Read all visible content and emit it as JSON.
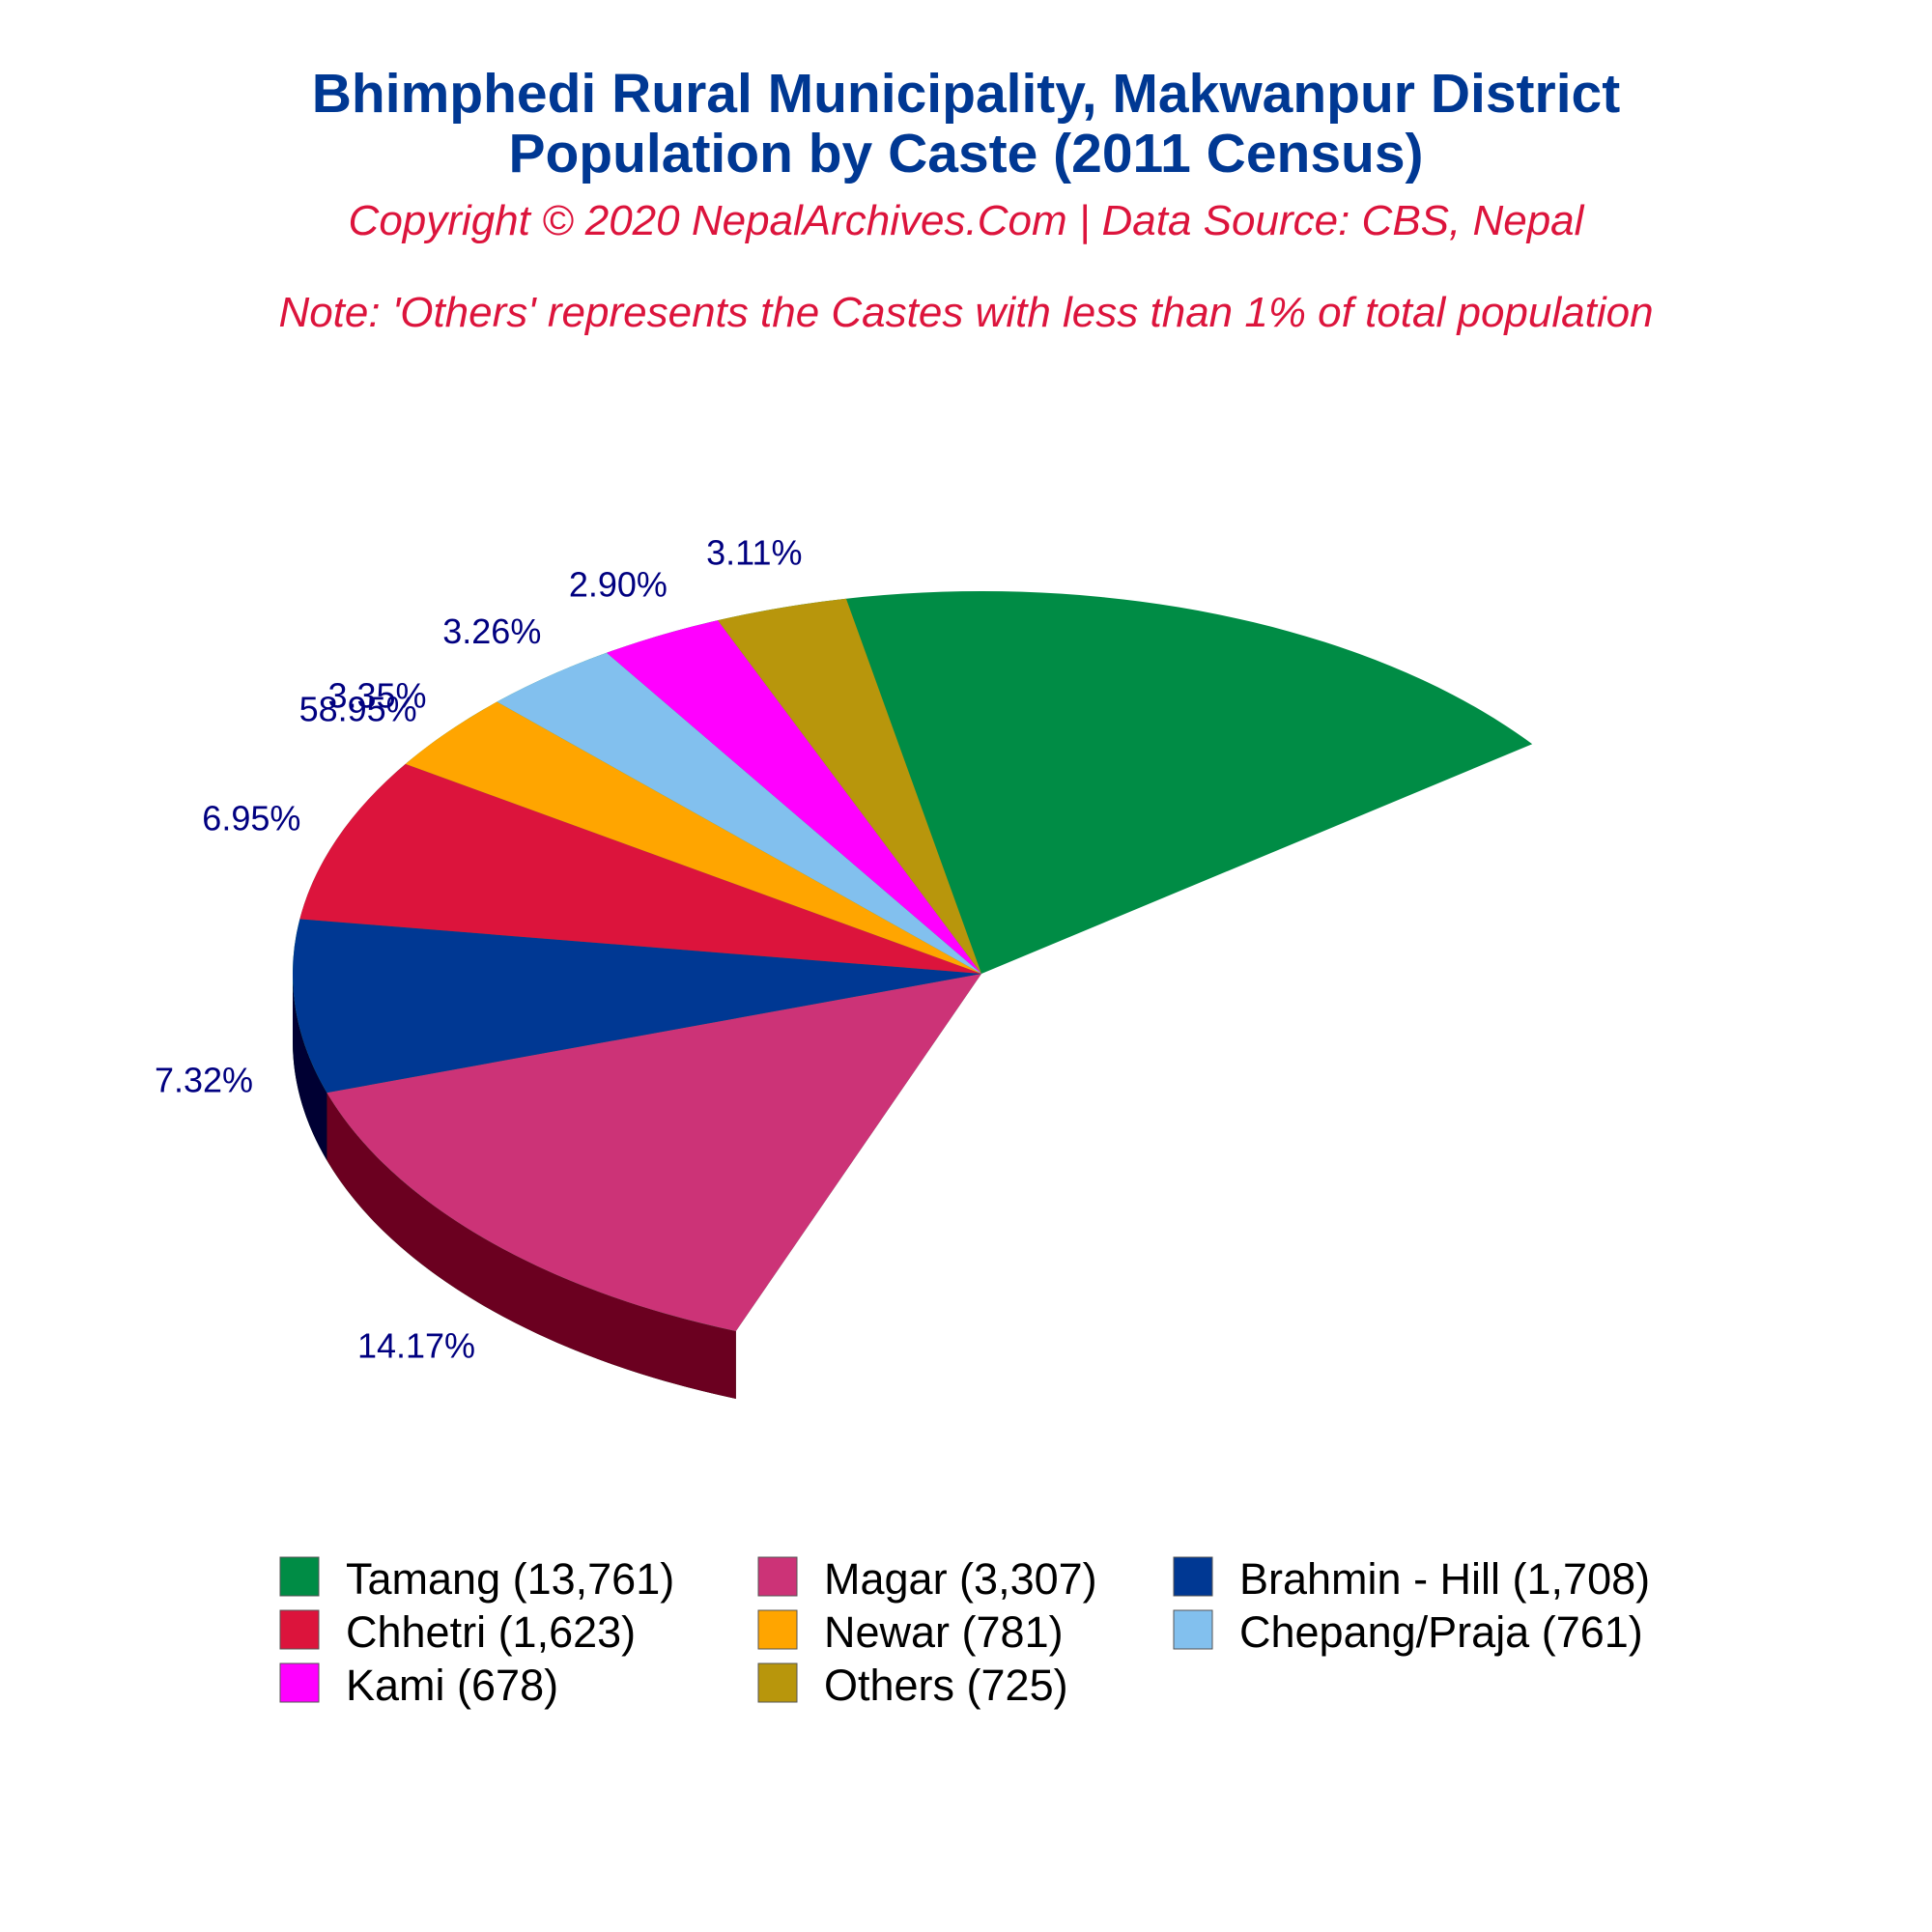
{
  "title_line1": "Bhimphedi Rural Municipality, Makwanpur District",
  "title_line2": "Population by Caste (2011 Census)",
  "copyright": "Copyright © 2020 NepalArchives.Com | Data Source: CBS, Nepal",
  "note": "Note: 'Others' represents the Castes with less than 1% of total population",
  "chart_data": {
    "type": "pie",
    "style": "3d",
    "legend_position": "bottom",
    "series": [
      {
        "label": "Tamang (13,761)",
        "value": 13761,
        "percent": "58.95%",
        "color": "#008C45",
        "side_color": "#003300"
      },
      {
        "label": "Magar (3,307)",
        "value": 3307,
        "percent": "14.17%",
        "color": "#CC3377",
        "side_color": "#6B0020"
      },
      {
        "label": "Brahmin - Hill (1,708)",
        "value": 1708,
        "percent": "7.32%",
        "color": "#003893",
        "side_color": "#000033"
      },
      {
        "label": "Chhetri (1,623)",
        "value": 1623,
        "percent": "6.95%",
        "color": "#DC143C",
        "side_color": "#800000"
      },
      {
        "label": "Newar (781)",
        "value": 781,
        "percent": "3.35%",
        "color": "#FFA500",
        "side_color": "#805200"
      },
      {
        "label": "Chepang/Praja (761)",
        "value": 761,
        "percent": "3.26%",
        "color": "#82C0EE",
        "side_color": "#406077"
      },
      {
        "label": "Kami (678)",
        "value": 678,
        "percent": "2.90%",
        "color": "#FF00FF",
        "side_color": "#800080"
      },
      {
        "label": "Others (725)",
        "value": 725,
        "percent": "3.11%",
        "color": "#B8960C",
        "side_color": "#5C4B06"
      }
    ]
  }
}
